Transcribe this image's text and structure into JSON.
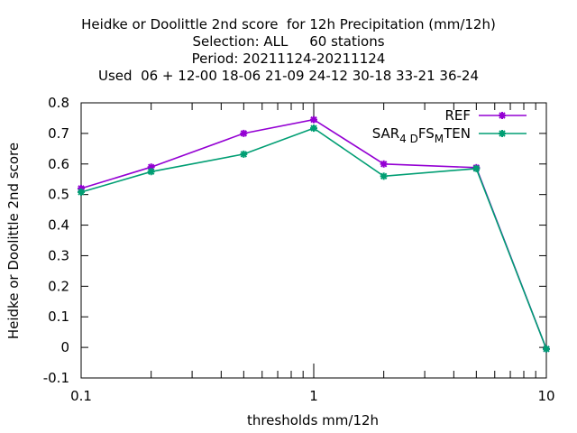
{
  "title_lines": [
    "Heidke or Doolittle 2nd score  for 12h Precipitation (mm/12h)",
    "Selection: ALL     60 stations",
    "Period: 20211124-20211124",
    "Used  06 + 12-00 18-06 21-09 24-12 30-18 33-21 36-24"
  ],
  "chart_data": {
    "type": "line",
    "title": "Heidke or Doolittle 2nd score  for 12h Precipitation (mm/12h)",
    "xlabel": "thresholds mm/12h",
    "ylabel": "Heidke or Doolittle 2nd score",
    "xscale": "log",
    "xlim": [
      0.1,
      10
    ],
    "ylim": [
      -0.1,
      0.8
    ],
    "x_tick_labels": [
      "0.1",
      "1",
      "10"
    ],
    "y_tick_labels": [
      "-0.1",
      "0",
      "0.1",
      "0.2",
      "0.3",
      "0.4",
      "0.5",
      "0.6",
      "0.7",
      "0.8"
    ],
    "x": [
      0.1,
      0.2,
      0.5,
      1,
      2,
      5,
      10
    ],
    "legend_position": "top-right",
    "grid": false,
    "series": [
      {
        "name": "REF",
        "legend_parts": [
          "REF"
        ],
        "color": "#9400d3",
        "values": [
          0.52,
          0.59,
          0.7,
          0.745,
          0.6,
          0.588,
          -0.005
        ]
      },
      {
        "name": "SAR_4DFS_MTEN",
        "legend_parts": [
          "SAR",
          "4 D",
          "FS",
          "M",
          "TEN"
        ],
        "color": "#009e73",
        "values": [
          0.508,
          0.575,
          0.632,
          0.717,
          0.56,
          0.585,
          -0.005
        ]
      }
    ]
  }
}
